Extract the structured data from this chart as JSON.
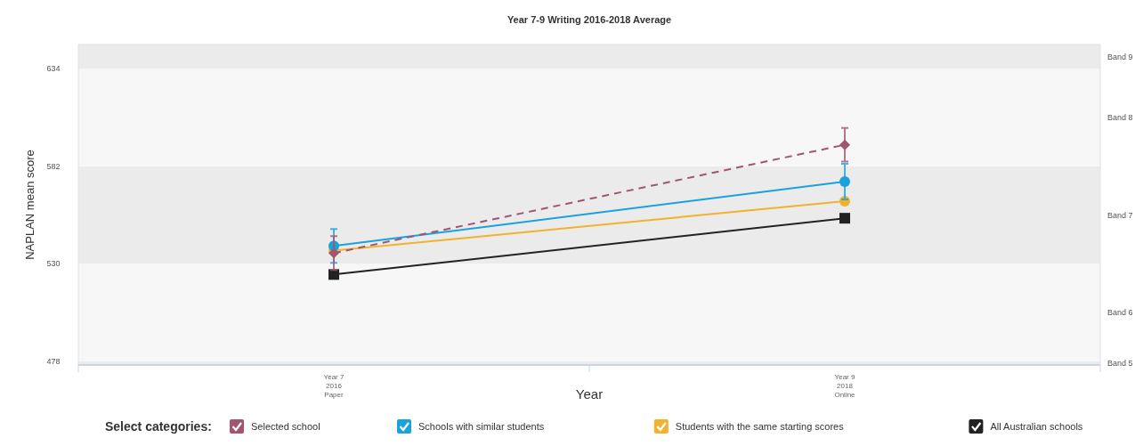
{
  "chart_data": {
    "type": "line",
    "title": "Year 7-9 Writing 2016-2018 Average",
    "xlabel": "Year",
    "ylabel": "NAPLAN mean score",
    "legend_title": "Select categories:",
    "categories": [
      "Year 7\n2016\nPaper",
      "Year 9\n2018\nOnline"
    ],
    "series": [
      {
        "name": "Selected school",
        "color": "#a0566e",
        "values": [
          535.7,
          593.5
        ],
        "errors": [
          9,
          9
        ],
        "marker": "diamond",
        "line_style": "dashed"
      },
      {
        "name": "Schools with similar students",
        "color": "#1ba1dc",
        "values": [
          539.5,
          573.9
        ],
        "errors": [
          9,
          9.5
        ],
        "marker": "circle",
        "line_style": "solid"
      },
      {
        "name": "Students with the same starting scores",
        "color": "#f2b230",
        "values": [
          537,
          563.4
        ],
        "marker": "circle",
        "line_style": "solid"
      },
      {
        "name": "All Australian schools",
        "color": "#222222",
        "values": [
          524.3,
          554.3
        ],
        "marker": "square",
        "line_style": "solid"
      }
    ],
    "ylim": [
      476,
      647
    ],
    "yticks": [
      478,
      530,
      582,
      634
    ],
    "bands": [
      {
        "axis": "y",
        "from": 476,
        "to": 478,
        "label": "Band 5",
        "color": "#ebebeb"
      },
      {
        "axis": "y",
        "from": 478,
        "to": 530,
        "label": "Band 6",
        "color": "#f7f7f7"
      },
      {
        "axis": "y",
        "from": 530,
        "to": 582,
        "label": "Band 7",
        "color": "#ebebeb"
      },
      {
        "axis": "y",
        "from": 582,
        "to": 634,
        "label": "Band 8",
        "color": "#f7f7f7"
      },
      {
        "axis": "y",
        "from": 634,
        "to": 647,
        "label": "Band 9",
        "color": "#ebebeb"
      }
    ],
    "grid": false,
    "legend": "bottom"
  }
}
